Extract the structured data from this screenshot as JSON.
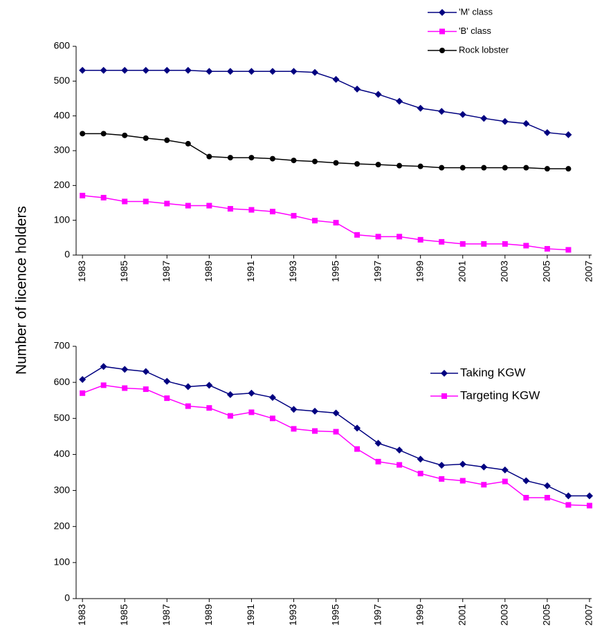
{
  "chart_data": [
    {
      "type": "line",
      "ylabel": "Number of licence holders",
      "legend": "top-right",
      "x": [
        1983,
        1984,
        1985,
        1986,
        1987,
        1988,
        1989,
        1990,
        1991,
        1992,
        1993,
        1994,
        1995,
        1996,
        1997,
        1998,
        1999,
        2000,
        2001,
        2002,
        2003,
        2004,
        2005,
        2006
      ],
      "series": [
        {
          "name": "'M' class",
          "color": "#000080",
          "marker": "diamond",
          "values": [
            531,
            531,
            531,
            531,
            531,
            531,
            528,
            528,
            528,
            528,
            528,
            525,
            505,
            477,
            462,
            442,
            422,
            413,
            404,
            393,
            384,
            378,
            352,
            346
          ]
        },
        {
          "name": "'B' class",
          "color": "#ff00ff",
          "marker": "square",
          "values": [
            171,
            165,
            154,
            154,
            148,
            142,
            142,
            133,
            130,
            125,
            113,
            99,
            93,
            58,
            53,
            53,
            44,
            38,
            32,
            32,
            32,
            27,
            18,
            15
          ]
        },
        {
          "name": "Rock lobster",
          "color": "#000000",
          "marker": "circle",
          "values": [
            349,
            349,
            344,
            336,
            330,
            320,
            283,
            280,
            280,
            277,
            272,
            269,
            265,
            262,
            260,
            257,
            255,
            251,
            251,
            251,
            251,
            251,
            248,
            248
          ]
        }
      ],
      "xlim": [
        1982.7,
        2007.1
      ],
      "xticks": [
        1983,
        1985,
        1987,
        1989,
        1991,
        1993,
        1995,
        1997,
        1999,
        2001,
        2003,
        2005,
        2007
      ],
      "ylim": [
        0,
        600
      ],
      "yticks": [
        0,
        100,
        200,
        300,
        400,
        500,
        600
      ]
    },
    {
      "type": "line",
      "legend": "right",
      "x": [
        1983,
        1984,
        1985,
        1986,
        1987,
        1988,
        1989,
        1990,
        1991,
        1992,
        1993,
        1994,
        1995,
        1996,
        1997,
        1998,
        1999,
        2000,
        2001,
        2002,
        2003,
        2004,
        2005,
        2006,
        2007
      ],
      "series": [
        {
          "name": "Taking KGW",
          "color": "#000080",
          "marker": "diamond",
          "values": [
            608,
            644,
            636,
            630,
            603,
            588,
            592,
            566,
            570,
            558,
            525,
            520,
            515,
            473,
            431,
            412,
            387,
            370,
            373,
            365,
            357,
            327,
            313,
            285,
            285
          ]
        },
        {
          "name": "Targeting KGW",
          "color": "#ff00ff",
          "marker": "square",
          "values": [
            570,
            592,
            584,
            581,
            556,
            534,
            529,
            507,
            517,
            500,
            471,
            465,
            463,
            415,
            380,
            371,
            347,
            332,
            327,
            316,
            325,
            280,
            280,
            260,
            258
          ]
        }
      ],
      "xlim": [
        1982.7,
        2007.1
      ],
      "xticks": [
        1983,
        1985,
        1987,
        1989,
        1991,
        1993,
        1995,
        1997,
        1999,
        2001,
        2003,
        2005,
        2007
      ],
      "ylim": [
        0,
        700
      ],
      "yticks": [
        0,
        100,
        200,
        300,
        400,
        500,
        600,
        700
      ]
    }
  ]
}
